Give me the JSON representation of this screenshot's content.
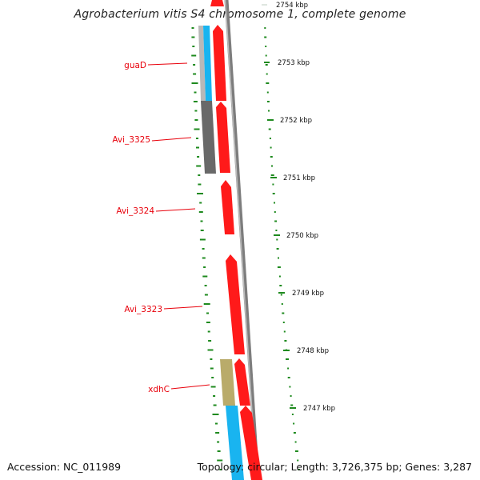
{
  "title": "Agrobacterium vitis S4 chromosome 1, complete genome",
  "footer": {
    "accession": "Accession: NC_011989",
    "topology": "Topology: circular; Length: 3,726,375 bp; Genes: 3,287"
  },
  "colors": {
    "forward_cds": "#ff1a1a",
    "reverse_cds_dark": "#696969",
    "reverse_cds_light": "#b8b8b8",
    "cyan_cds": "#19b4f0",
    "olive_cds": "#b9ab6a",
    "gene_label": "#e8000b",
    "gc_ticks": "#1e8a1e",
    "backbone": "#888888"
  },
  "scale_labels": [
    "2754 kbp",
    "2753 kbp",
    "2752 kbp",
    "2751 kbp",
    "2750 kbp",
    "2749 kbp",
    "2748 kbp",
    "2747 kbp"
  ],
  "gene_labels": [
    "guaD",
    "Avi_3325",
    "Avi_3324",
    "Avi_3323",
    "xdhC"
  ]
}
